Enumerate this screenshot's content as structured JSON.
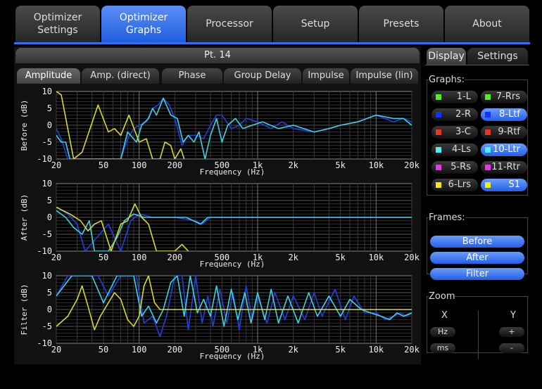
{
  "tabs": [
    {
      "label": "Optimizer\nSettings"
    },
    {
      "label": "Optimizer\nGraphs",
      "active": true
    },
    {
      "label": "Processor"
    },
    {
      "label": "Setup"
    },
    {
      "label": "Presets"
    },
    {
      "label": "About"
    }
  ],
  "main": {
    "title": "Pt. 14",
    "subtabs": [
      "Amplitude",
      "Amp. (direct)",
      "Phase",
      "Group Delay",
      "Impulse",
      "Impulse (lin)"
    ],
    "active_subtab": "Amplitude"
  },
  "side": {
    "tabs": [
      "Display",
      "Settings"
    ],
    "active_tab": "Display",
    "graphs_label": "Graphs:",
    "graphs": [
      {
        "label": "1-L",
        "color": "#55ee22",
        "on": false
      },
      {
        "label": "7-Rrs",
        "color": "#55ee22",
        "on": false
      },
      {
        "label": "2-R",
        "color": "#1133ff",
        "on": false
      },
      {
        "label": "8-Ltf",
        "color": "#1133ff",
        "on": true
      },
      {
        "label": "3-C",
        "color": "#ee3322",
        "on": false
      },
      {
        "label": "9-Rtf",
        "color": "#ee3322",
        "on": false
      },
      {
        "label": "4-Ls",
        "color": "#55eeee",
        "on": false
      },
      {
        "label": "10-Ltr",
        "color": "#55eeee",
        "on": true
      },
      {
        "label": "5-Rs",
        "color": "#ee33ee",
        "on": false
      },
      {
        "label": "11-Rtr",
        "color": "#ee33ee",
        "on": false
      },
      {
        "label": "6-Lrs",
        "color": "#eeee11",
        "on": false
      },
      {
        "label": "S1",
        "color": "#eeee11",
        "on": true
      }
    ],
    "frames_label": "Frames:",
    "frames": [
      "Before",
      "After",
      "Filter"
    ],
    "zoom": {
      "label": "Zoom",
      "x_label": "X",
      "y_label": "Y",
      "x_buttons": [
        "Hz",
        "ms"
      ],
      "y_buttons": [
        "+",
        "-"
      ]
    }
  },
  "chart_data": [
    {
      "type": "line",
      "ylabel": "Before (dB)",
      "xlabel": "Frequency (Hz)",
      "xscale": "log",
      "xlim": [
        20,
        20000
      ],
      "ylim": [
        -10,
        10
      ],
      "grid": true,
      "xticks": [
        "20",
        "50",
        "100",
        "200",
        "500",
        "1k",
        "2k",
        "5k",
        "10k",
        "20k"
      ],
      "yticks": [
        "10",
        "5",
        "0",
        "-5",
        "-10"
      ],
      "series": [
        {
          "color": "#2040e0",
          "points": [
            [
              20,
              -1
            ],
            [
              22,
              -4
            ],
            [
              25,
              -10
            ],
            [
              70,
              -10
            ],
            [
              80,
              -4
            ],
            [
              90,
              -1
            ],
            [
              100,
              0
            ],
            [
              115,
              1
            ],
            [
              130,
              5
            ],
            [
              145,
              6
            ],
            [
              160,
              8
            ],
            [
              180,
              6
            ],
            [
              200,
              2
            ],
            [
              230,
              -6
            ],
            [
              260,
              -3
            ],
            [
              300,
              -3
            ],
            [
              350,
              -4
            ],
            [
              400,
              0
            ],
            [
              450,
              3
            ],
            [
              500,
              3
            ],
            [
              600,
              -1
            ],
            [
              700,
              0
            ],
            [
              800,
              2
            ],
            [
              1000,
              1
            ],
            [
              1300,
              -1
            ],
            [
              1600,
              1
            ],
            [
              2000,
              -1
            ],
            [
              3000,
              -2
            ],
            [
              4000,
              -1
            ],
            [
              5000,
              0
            ],
            [
              7000,
              1
            ],
            [
              10000,
              3
            ],
            [
              14000,
              1
            ],
            [
              17000,
              2
            ],
            [
              20000,
              1
            ]
          ]
        },
        {
          "color": "#40d0e0",
          "points": [
            [
              20,
              -3
            ],
            [
              22,
              -5
            ],
            [
              24,
              -5
            ],
            [
              26,
              -10
            ],
            [
              70,
              -10
            ],
            [
              80,
              -2
            ],
            [
              95,
              -5
            ],
            [
              105,
              0
            ],
            [
              120,
              2
            ],
            [
              130,
              5
            ],
            [
              140,
              3
            ],
            [
              160,
              8
            ],
            [
              185,
              3
            ],
            [
              210,
              2
            ],
            [
              235,
              -5
            ],
            [
              260,
              -3
            ],
            [
              290,
              -5
            ],
            [
              320,
              -2
            ],
            [
              360,
              -10
            ],
            [
              400,
              -3
            ],
            [
              450,
              2
            ],
            [
              500,
              -5
            ],
            [
              560,
              0
            ],
            [
              650,
              2
            ],
            [
              750,
              -1
            ],
            [
              900,
              0
            ],
            [
              1100,
              1
            ],
            [
              1500,
              -1
            ],
            [
              2000,
              0
            ],
            [
              3000,
              -2
            ],
            [
              4000,
              -1
            ],
            [
              5000,
              0
            ],
            [
              7000,
              1
            ],
            [
              10000,
              3
            ],
            [
              14000,
              2
            ],
            [
              17000,
              2
            ],
            [
              20000,
              0
            ]
          ]
        },
        {
          "color": "#d8d830",
          "points": [
            [
              20,
              10
            ],
            [
              22,
              9
            ],
            [
              28,
              -10
            ],
            [
              33,
              -8
            ],
            [
              45,
              6
            ],
            [
              55,
              -2
            ],
            [
              62,
              -1
            ],
            [
              70,
              -3
            ],
            [
              82,
              3
            ],
            [
              100,
              -5
            ],
            [
              115,
              -4
            ],
            [
              130,
              -10
            ],
            [
              150,
              -10
            ],
            [
              165,
              -5
            ],
            [
              185,
              -6
            ],
            [
              200,
              -10
            ],
            [
              225,
              -7
            ],
            [
              240,
              -10
            ]
          ]
        }
      ]
    },
    {
      "type": "line",
      "ylabel": "After (dB)",
      "xlabel": "Frequency (Hz)",
      "xscale": "log",
      "xlim": [
        20,
        20000
      ],
      "ylim": [
        -10,
        10
      ],
      "grid": true,
      "xticks": [
        "20",
        "50",
        "100",
        "200",
        "500",
        "1k",
        "2k",
        "5k",
        "10k",
        "20k"
      ],
      "yticks": [
        "10",
        "5",
        "0",
        "-5",
        "-10"
      ],
      "series": [
        {
          "color": "#2040e0",
          "points": [
            [
              20,
              3
            ],
            [
              25,
              1
            ],
            [
              30,
              -2
            ],
            [
              35,
              -10
            ],
            [
              55,
              -2
            ],
            [
              62,
              -6
            ],
            [
              70,
              -10
            ],
            [
              85,
              -1
            ],
            [
              100,
              1
            ],
            [
              130,
              0
            ],
            [
              200,
              0
            ],
            [
              300,
              -1
            ],
            [
              340,
              -2
            ],
            [
              400,
              0
            ],
            [
              1000,
              0
            ],
            [
              20000,
              0
            ]
          ]
        },
        {
          "color": "#40d0e0",
          "points": [
            [
              20,
              2
            ],
            [
              24,
              0
            ],
            [
              28,
              -3
            ],
            [
              33,
              -5
            ],
            [
              38,
              -1
            ],
            [
              42,
              -10
            ],
            [
              55,
              -10
            ],
            [
              65,
              -6
            ],
            [
              75,
              -1
            ],
            [
              90,
              1
            ],
            [
              110,
              0
            ],
            [
              150,
              0
            ],
            [
              250,
              0
            ],
            [
              330,
              -2
            ],
            [
              380,
              0
            ],
            [
              1000,
              0
            ],
            [
              20000,
              0
            ]
          ]
        },
        {
          "color": "#d8d830",
          "points": [
            [
              20,
              3
            ],
            [
              26,
              1
            ],
            [
              32,
              -1
            ],
            [
              37,
              -4
            ],
            [
              42,
              -2
            ],
            [
              48,
              -1
            ],
            [
              58,
              -10
            ],
            [
              70,
              -2
            ],
            [
              80,
              -1
            ],
            [
              92,
              4
            ],
            [
              105,
              0
            ],
            [
              120,
              -2
            ],
            [
              140,
              -10
            ],
            [
              200,
              -10
            ],
            [
              230,
              -8
            ],
            [
              260,
              -10
            ]
          ]
        }
      ]
    },
    {
      "type": "line",
      "ylabel": "Filter (dB)",
      "xlabel": "Frequency (Hz)",
      "xscale": "log",
      "xlim": [
        20,
        20000
      ],
      "ylim": [
        -10,
        10
      ],
      "grid": true,
      "xticks": [
        "20",
        "50",
        "100",
        "200",
        "500",
        "1k",
        "2k",
        "5k",
        "10k",
        "20k"
      ],
      "yticks": [
        "10",
        "5",
        "0",
        "-5",
        "-10"
      ],
      "series": [
        {
          "color": "#2040e0",
          "points": [
            [
              20,
              4
            ],
            [
              25,
              10
            ],
            [
              45,
              10
            ],
            [
              55,
              4
            ],
            [
              70,
              10
            ],
            [
              95,
              10
            ],
            [
              110,
              -4
            ],
            [
              130,
              -2
            ],
            [
              150,
              -8
            ],
            [
              170,
              -2
            ],
            [
              200,
              10
            ],
            [
              230,
              10
            ],
            [
              260,
              -6
            ],
            [
              300,
              10
            ],
            [
              340,
              -4
            ],
            [
              380,
              4
            ],
            [
              420,
              -5
            ],
            [
              480,
              6
            ],
            [
              550,
              -4
            ],
            [
              620,
              5
            ],
            [
              700,
              -6
            ],
            [
              800,
              7
            ],
            [
              900,
              -3
            ],
            [
              1000,
              4
            ],
            [
              1200,
              -4
            ],
            [
              1400,
              5
            ],
            [
              1700,
              -3
            ],
            [
              2000,
              4
            ],
            [
              2500,
              -3
            ],
            [
              3000,
              5
            ],
            [
              3500,
              -2
            ],
            [
              4500,
              6
            ],
            [
              5500,
              -3
            ],
            [
              6500,
              4
            ],
            [
              8000,
              -1
            ],
            [
              10000,
              -1
            ],
            [
              12000,
              -3
            ],
            [
              14000,
              -2
            ],
            [
              16000,
              -1
            ],
            [
              18000,
              -2
            ],
            [
              20000,
              -1
            ]
          ]
        },
        {
          "color": "#40d0e0",
          "points": [
            [
              20,
              4
            ],
            [
              27,
              10
            ],
            [
              40,
              10
            ],
            [
              50,
              2
            ],
            [
              65,
              10
            ],
            [
              90,
              10
            ],
            [
              105,
              -2
            ],
            [
              120,
              1
            ],
            [
              140,
              -4
            ],
            [
              160,
              0
            ],
            [
              185,
              8
            ],
            [
              210,
              10
            ],
            [
              240,
              -2
            ],
            [
              270,
              10
            ],
            [
              310,
              -1
            ],
            [
              350,
              3
            ],
            [
              400,
              -2
            ],
            [
              450,
              7
            ],
            [
              520,
              -5
            ],
            [
              600,
              6
            ],
            [
              680,
              -3
            ],
            [
              780,
              5
            ],
            [
              880,
              -4
            ],
            [
              1000,
              5
            ],
            [
              1150,
              -3
            ],
            [
              1300,
              6
            ],
            [
              1500,
              -4
            ],
            [
              1800,
              4
            ],
            [
              2200,
              -4
            ],
            [
              2700,
              5
            ],
            [
              3200,
              -2
            ],
            [
              4000,
              4
            ],
            [
              5000,
              -2
            ],
            [
              6000,
              3
            ],
            [
              7500,
              0
            ],
            [
              9000,
              -1
            ],
            [
              11000,
              -2
            ],
            [
              13000,
              -3
            ],
            [
              15000,
              -1
            ],
            [
              17000,
              -2
            ],
            [
              20000,
              -1
            ]
          ]
        },
        {
          "color": "#d8d830",
          "points": [
            [
              20,
              -5
            ],
            [
              25,
              -2
            ],
            [
              30,
              3
            ],
            [
              33,
              7
            ],
            [
              37,
              1
            ],
            [
              42,
              -6
            ],
            [
              47,
              -2
            ],
            [
              55,
              2
            ],
            [
              62,
              5
            ],
            [
              70,
              3
            ],
            [
              80,
              -3
            ],
            [
              90,
              -5
            ],
            [
              100,
              -2
            ],
            [
              110,
              7
            ],
            [
              120,
              10
            ],
            [
              135,
              2
            ],
            [
              150,
              0
            ],
            [
              200,
              0
            ],
            [
              20000,
              0
            ]
          ]
        }
      ]
    }
  ]
}
